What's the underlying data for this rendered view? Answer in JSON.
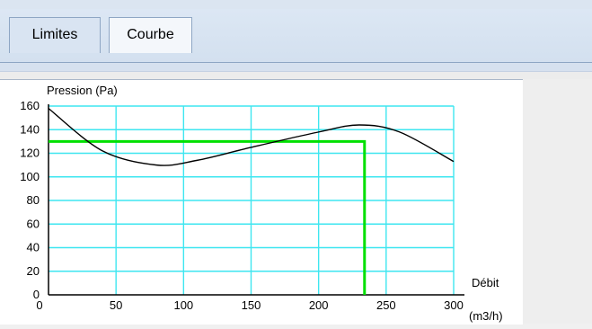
{
  "tabs": [
    {
      "label": "Limites",
      "active": false
    },
    {
      "label": "Courbe",
      "active": true
    }
  ],
  "chart_data": {
    "type": "line",
    "ylabel": "Pression (Pa)",
    "xlabel": "Débit",
    "xlabel_unit": "(m3/h)",
    "xlim": [
      0,
      300
    ],
    "ylim": [
      0,
      160
    ],
    "x_ticks": [
      0,
      50,
      100,
      150,
      200,
      250,
      300
    ],
    "y_ticks": [
      0,
      20,
      40,
      60,
      80,
      100,
      120,
      140,
      160
    ],
    "grid": true,
    "colors": {
      "grid": "#3ee6f0",
      "curve": "#000000",
      "operating_point": "#00e000",
      "axis": "#000000"
    },
    "series": [
      {
        "x": [
          0,
          40,
          80,
          110,
          150,
          200,
          230,
          260,
          300
        ],
        "y": [
          158,
          122,
          110,
          114,
          125,
          138,
          144,
          138,
          113
        ]
      }
    ],
    "operating_point": {
      "x": 234,
      "y": 130
    }
  }
}
